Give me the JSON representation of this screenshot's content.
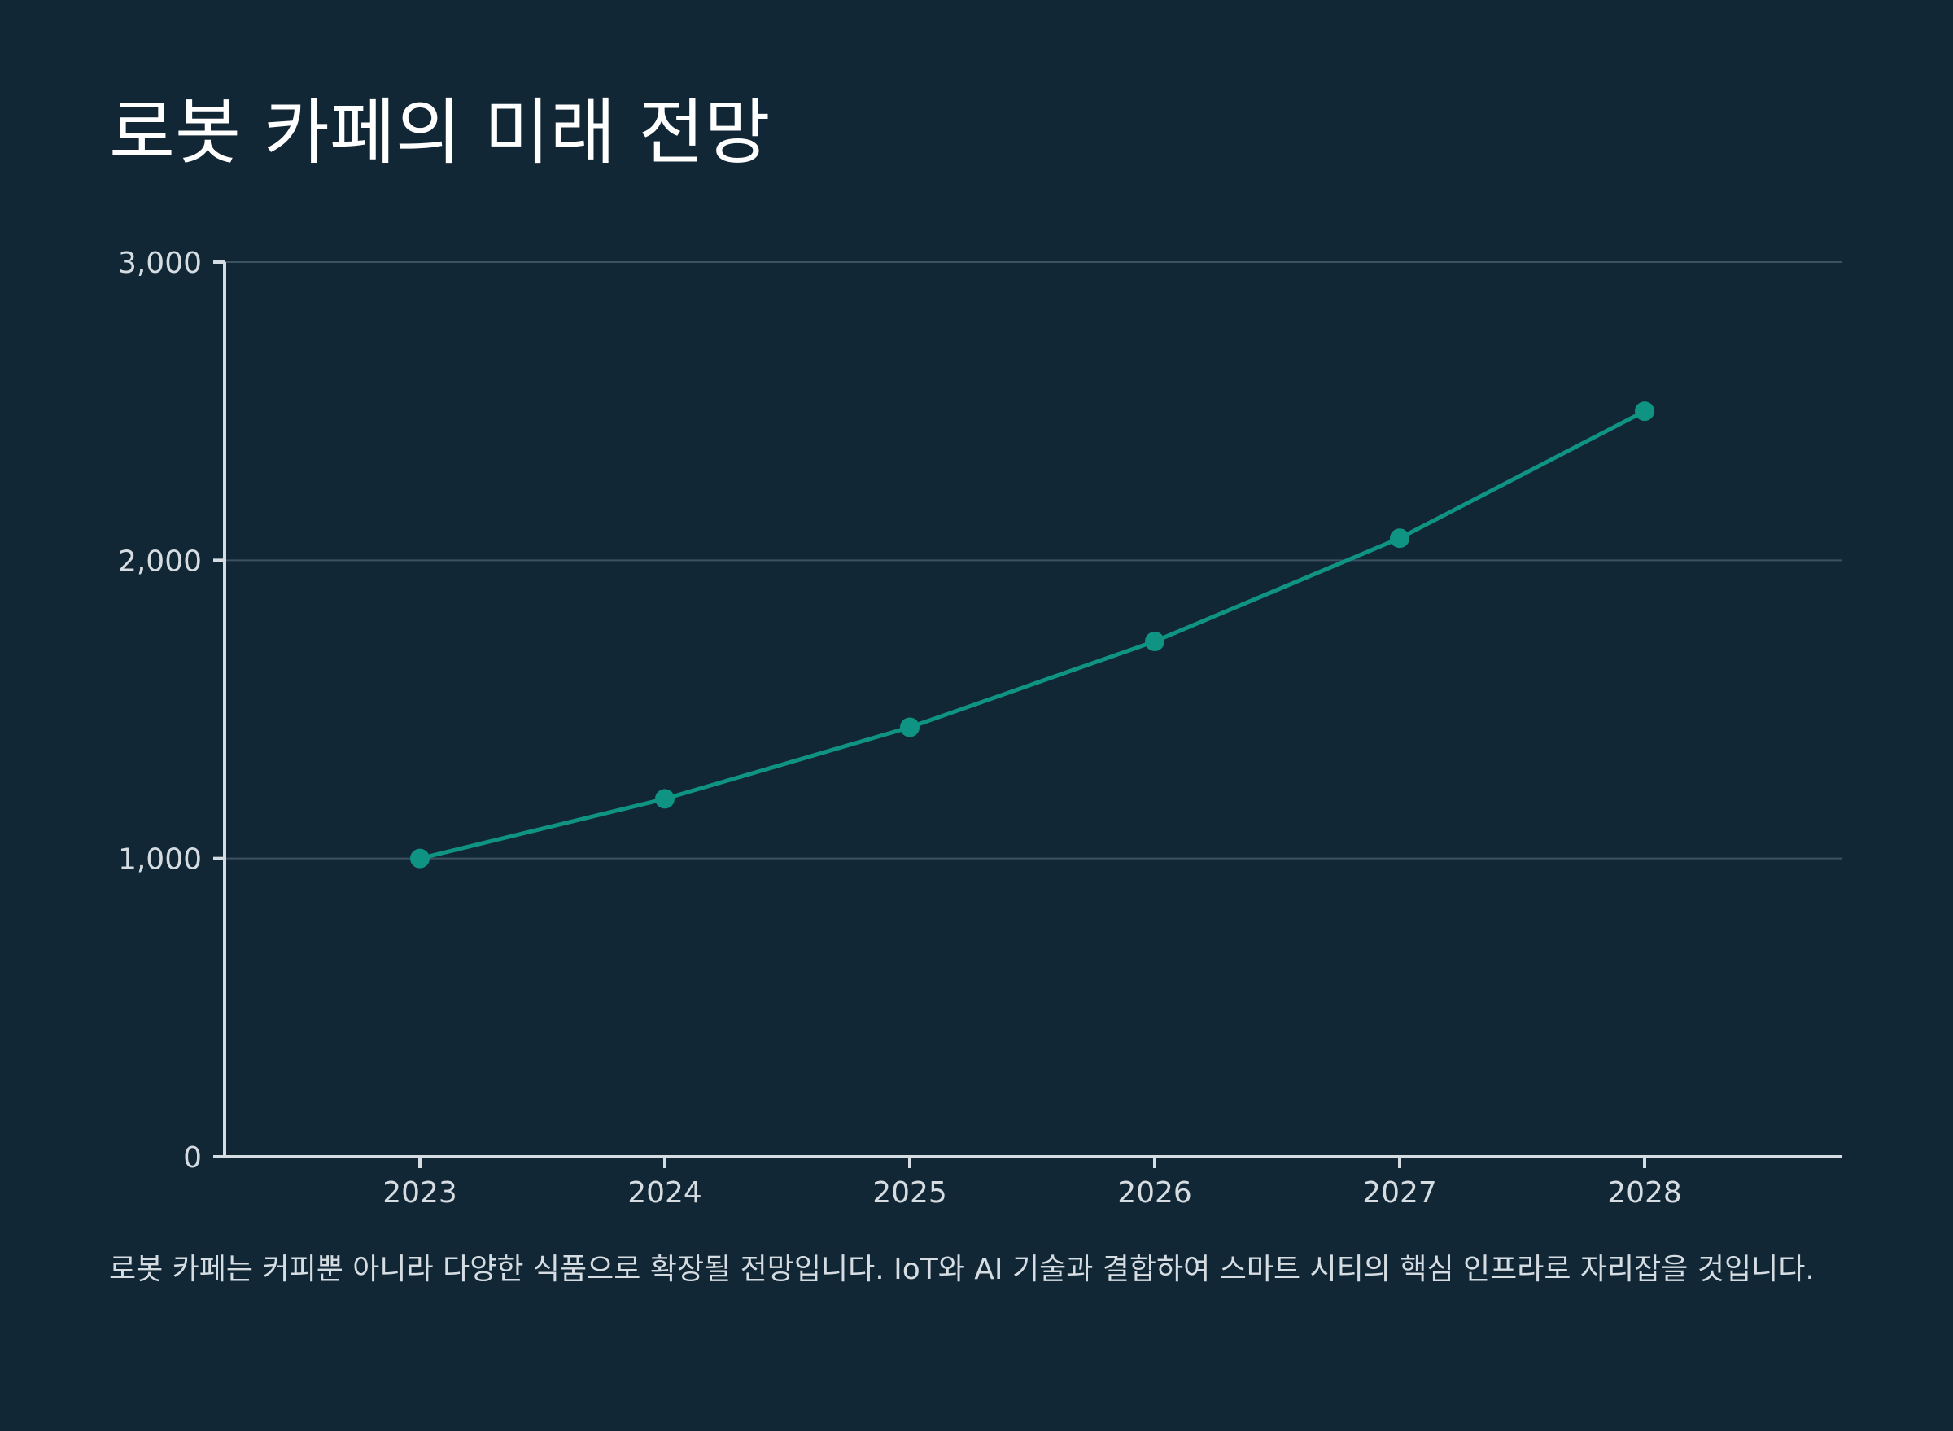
{
  "title": "로봇 카페의 미래 전망",
  "caption": "로봇 카페는 커피뿐 아니라 다양한 식품으로 확장될 전망입니다. IoT와 AI 기술과 결합하여 스마트 시티의 핵심 인프라로 자리잡을 것입니다.",
  "colors": {
    "background": "#122735",
    "line": "#0f9483",
    "axis": "#d6dde2",
    "grid": "#3c5260"
  },
  "chart_data": {
    "type": "line",
    "title": "로봇 카페의 미래 전망",
    "xlabel": "",
    "ylabel": "",
    "x": [
      "2023",
      "2024",
      "2025",
      "2026",
      "2027",
      "2028"
    ],
    "series": [
      {
        "values": [
          1000,
          1200,
          1440,
          1728,
          2074,
          2500
        ]
      }
    ],
    "ylim": [
      0,
      3000
    ],
    "yticks": [
      0,
      1000,
      2000,
      3000
    ],
    "ytick_labels": [
      "0",
      "1,000",
      "2,000",
      "3,000"
    ],
    "grid": true,
    "legend": "none"
  }
}
